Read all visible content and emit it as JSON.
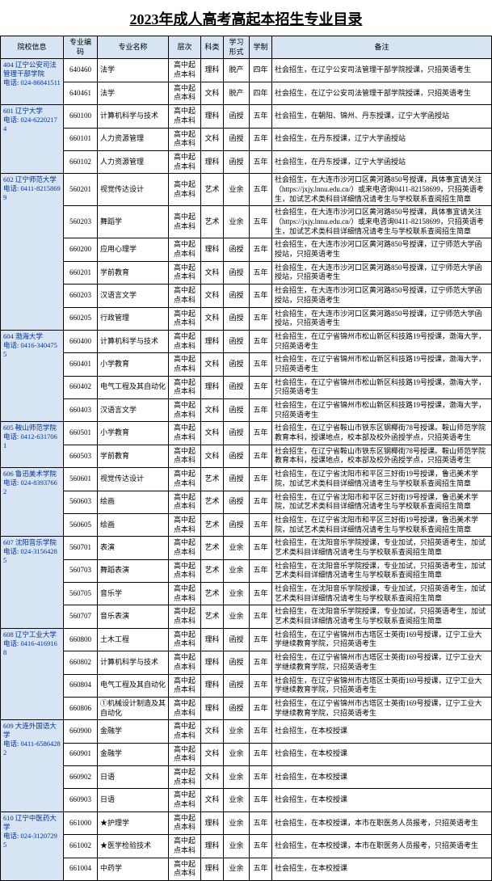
{
  "title": "2023年成人高考高起本招生专业目录",
  "headers": [
    "院校信息",
    "专业编码",
    "专业名称",
    "层次",
    "科类",
    "学习形式",
    "学制",
    "备注"
  ],
  "schools": [
    {
      "info": "404 辽宁公安司法管理干部学院\n电话: 024-86841511",
      "majors": [
        {
          "code": "640460",
          "name": "法学",
          "level": "高中起点本科",
          "cat": "理科",
          "form": "脱产",
          "year": "四年",
          "remark": "社会招生，在辽宁公安司法管理干部学院授课，只招英语考生"
        },
        {
          "code": "640461",
          "name": "法学",
          "level": "高中起点本科",
          "cat": "文科",
          "form": "脱产",
          "year": "四年",
          "remark": "社会招生，在辽宁公安司法管理干部学院授课，只招英语考生"
        }
      ]
    },
    {
      "info": "601 辽宁大学\n电话: 024-62202174",
      "majors": [
        {
          "code": "660100",
          "name": "计算机科学与技术",
          "level": "高中起点本科",
          "cat": "理科",
          "form": "函授",
          "year": "五年",
          "remark": "社会招生，在朝阳、锦州、丹东授课，辽宁大学函授站"
        },
        {
          "code": "660101",
          "name": "人力资源管理",
          "level": "高中起点本科",
          "cat": "文科",
          "form": "函授",
          "year": "五年",
          "remark": "社会招生，在丹东授课，辽宁大学函授站"
        },
        {
          "code": "660102",
          "name": "人力资源管理",
          "level": "高中起点本科",
          "cat": "理科",
          "form": "函授",
          "year": "五年",
          "remark": "社会招生，在丹东授课，辽宁大学函授站"
        }
      ]
    },
    {
      "info": "602 辽宁师范大学\n电话: 0411-82158699",
      "majors": [
        {
          "code": "560201",
          "name": "视觉传达设计",
          "level": "高中起点本科",
          "cat": "艺术",
          "form": "业余",
          "year": "五年",
          "remark": "社会招生，在大连市沙河口区黄河路850号授课，具体事宜请关注（https://jxjy.lnnu.edu.cn/）或来电咨询0411-82158699，只招英语考生，加试艺术类科目详细情况请考生与学校联系查阅招生简章"
        },
        {
          "code": "560203",
          "name": "舞蹈学",
          "level": "高中起点本科",
          "cat": "艺术",
          "form": "业余",
          "year": "五年",
          "remark": "社会招生，在大连市沙河口区黄河路850号授课，具体事宜请关注（https://jxjy.lnnu.edu.cn/）或来电咨询0411-82158699，只招英语考生，加试艺术类科目详细情况请考生与学校联系查阅招生简章"
        },
        {
          "code": "660200",
          "name": "应用心理学",
          "level": "高中起点本科",
          "cat": "理科",
          "form": "函授",
          "year": "五年",
          "remark": "社会招生，在大连市沙河口区黄河路850号授课，辽宁师范大学函授站，只招英语考生"
        },
        {
          "code": "660201",
          "name": "学前教育",
          "level": "高中起点本科",
          "cat": "文科",
          "form": "函授",
          "year": "五年",
          "remark": "社会招生，在大连市沙河口区黄河路850号授课，辽宁师范大学函授站，只招英语考生"
        },
        {
          "code": "660203",
          "name": "汉语言文学",
          "level": "高中起点本科",
          "cat": "文科",
          "form": "函授",
          "year": "五年",
          "remark": "社会招生，在大连市沙河口区黄河路850号授课，辽宁师范大学函授站，只招英语考生"
        },
        {
          "code": "660205",
          "name": "行政管理",
          "level": "高中起点本科",
          "cat": "文科",
          "form": "函授",
          "year": "五年",
          "remark": "社会招生，在大连市沙河口区黄河路850号授课，辽宁师范大学函授站，只招英语考生"
        }
      ]
    },
    {
      "info": "604 渤海大学\n电话: 0416-3404755",
      "majors": [
        {
          "code": "660400",
          "name": "计算机科学与技术",
          "level": "高中起点本科",
          "cat": "理科",
          "form": "函授",
          "year": "五年",
          "remark": "社会招生，在辽宁省锦州市松山新区科技路19号授课，渤海大学，只招英语考生"
        },
        {
          "code": "660401",
          "name": "小学教育",
          "level": "高中起点本科",
          "cat": "文科",
          "form": "函授",
          "year": "五年",
          "remark": "社会招生，在辽宁省锦州市松山新区科技路19号授课，渤海大学，只招英语考生"
        },
        {
          "code": "660402",
          "name": "电气工程及其自动化",
          "level": "高中起点本科",
          "cat": "理科",
          "form": "函授",
          "year": "五年",
          "remark": "社会招生，在辽宁省锦州市松山新区科技路19号授课，渤海大学，只招英语考生"
        },
        {
          "code": "660403",
          "name": "汉语言文学",
          "level": "高中起点本科",
          "cat": "文科",
          "form": "函授",
          "year": "五年",
          "remark": "社会招生，在辽宁省锦州市松山新区科技路19号授课，渤海大学，只招英语考生"
        }
      ]
    },
    {
      "info": "605 鞍山师范学院\n电话: 0412-6317061",
      "majors": [
        {
          "code": "660501",
          "name": "小学教育",
          "level": "高中起点本科",
          "cat": "文科",
          "form": "函授",
          "year": "五年",
          "remark": "社会招生，在辽宁省鞍山市铁东区钢椰街78号授课。鞍山师范学院教育本科，授课地点，校本部及校外函授学点，只招英语考生"
        },
        {
          "code": "660503",
          "name": "学前教育",
          "level": "高中起点本科",
          "cat": "文科",
          "form": "函授",
          "year": "五年",
          "remark": "社会招生，在辽宁省鞍山市铁东区钢椰街78号授课。鞍山师范学院教育本科，授课地点，校本部及校外函授学点，只招英语考生"
        }
      ]
    },
    {
      "info": "606 鲁迅美术学院\n电话: 024-83937662",
      "majors": [
        {
          "code": "560601",
          "name": "视觉传达设计",
          "level": "高中起点本科",
          "cat": "艺术",
          "form": "函授",
          "year": "五年",
          "remark": "社会招生，在辽宁省沈阳市和平区三好街19号授课，鲁迅美术学院，加试艺术类科目详细情况请考生与学校联系查阅招生简章"
        },
        {
          "code": "560603",
          "name": "绘画",
          "level": "高中起点本科",
          "cat": "艺术",
          "form": "函授",
          "year": "五年",
          "remark": "社会招生，在辽宁省沈阳市和平区三好街19号授课，鲁迅美术学院，加试艺术类科目详细情况请考生与学校联系查阅招生简章"
        },
        {
          "code": "560605",
          "name": "绘画",
          "level": "高中起点本科",
          "cat": "艺术",
          "form": "函授",
          "year": "五年",
          "remark": "社会招生，在辽宁省沈阳市和平区三好街19号授课，鲁迅美术学院，加试艺术类科目详细情况请考生与学校联系查阅招生简章"
        }
      ]
    },
    {
      "info": "607 沈阳音乐学院\n电话: 024-31564285",
      "majors": [
        {
          "code": "560701",
          "name": "表演",
          "level": "高中起点本科",
          "cat": "艺术",
          "form": "业余",
          "year": "五年",
          "remark": "社会招生，在沈阳音乐学院授课，专业加试，只招英语考生，加试艺术类科目详细情况请考生与学校联系查阅招生简章"
        },
        {
          "code": "560703",
          "name": "舞蹈表演",
          "level": "高中起点本科",
          "cat": "艺术",
          "form": "业余",
          "year": "五年",
          "remark": "社会招生，在沈阳音乐学院授课，专业加试，只招英语考生，加试艺术类科目详细情况请考生与学校联系查阅招生简章"
        },
        {
          "code": "560705",
          "name": "音乐学",
          "level": "高中起点本科",
          "cat": "艺术",
          "form": "业余",
          "year": "五年",
          "remark": "社会招生，在沈阳音乐学院授课，专业加试，只招英语考生，加试艺术类科目详细情况请考生与学校联系查阅招生简章"
        },
        {
          "code": "560707",
          "name": "音乐表演",
          "level": "高中起点本科",
          "cat": "艺术",
          "form": "业余",
          "year": "五年",
          "remark": "社会招生，在沈阳音乐学院授课，专业加试，只招英语考生，加试艺术类科目详细情况请考生与学校联系查阅招生简章"
        }
      ]
    },
    {
      "info": "608 辽宁工业大学\n电话: 0416-4169168",
      "majors": [
        {
          "code": "660800",
          "name": "土木工程",
          "level": "高中起点本科",
          "cat": "理科",
          "form": "函授",
          "year": "五年",
          "remark": "社会招生，在辽宁省锦州市古塔区士英街169号授课，辽宁工业大学继续教育学院，只招英语考生"
        },
        {
          "code": "660802",
          "name": "计算机科学与技术",
          "level": "高中起点本科",
          "cat": "理科",
          "form": "函授",
          "year": "五年",
          "remark": "社会招生，在辽宁省锦州市古塔区士英街169号授课，辽宁工业大学继续教育学院，只招英语考生"
        },
        {
          "code": "660804",
          "name": "电气工程及其自动化",
          "level": "高中起点本科",
          "cat": "理科",
          "form": "函授",
          "year": "五年",
          "remark": "社会招生，在辽宁省锦州市古塔区士英街169号授课，辽宁工业大学继续教育学院，只招英语考生"
        },
        {
          "code": "660806",
          "name": "①机械设计制造及其自动化",
          "level": "高中起点本科",
          "cat": "理科",
          "form": "函授",
          "year": "五年",
          "remark": "社会招生，在辽宁省锦州市古塔区士英街169号授课，辽宁工业大学继续教育学院，只招英语考生"
        }
      ]
    },
    {
      "info": "609 大连外国语大学\n电话: 0411-65864282",
      "majors": [
        {
          "code": "660900",
          "name": "金融学",
          "level": "高中起点本科",
          "cat": "文科",
          "form": "业余",
          "year": "五年",
          "remark": "社会招生，在本校授课"
        },
        {
          "code": "660901",
          "name": "金融学",
          "level": "高中起点本科",
          "cat": "文科",
          "form": "业余",
          "year": "五年",
          "remark": "社会招生，在本校授课"
        },
        {
          "code": "660902",
          "name": "日语",
          "level": "高中起点本科",
          "cat": "文科",
          "form": "业余",
          "year": "五年",
          "remark": "社会招生，在本校授课"
        },
        {
          "code": "660903",
          "name": "日语",
          "level": "高中起点本科",
          "cat": "文科",
          "form": "业余",
          "year": "五年",
          "remark": "社会招生，在本校授课"
        }
      ]
    },
    {
      "info": "610 辽宁中医药大学\n电话: 024-31207295",
      "majors": [
        {
          "code": "661000",
          "name": "★护理学",
          "level": "高中起点本科",
          "cat": "理科",
          "form": "业余",
          "year": "五年",
          "remark": "社会招生，在本校授课，本市在职医务人员报考，只招英语考生"
        },
        {
          "code": "661002",
          "name": "★医学检验技术",
          "level": "高中起点本科",
          "cat": "理科",
          "form": "业余",
          "year": "五年",
          "remark": "社会招生，在本校授课，本市在职医务人员报考，只招英语考生"
        },
        {
          "code": "661004",
          "name": "中药学",
          "level": "高中起点本科",
          "cat": "理科",
          "form": "业余",
          "year": "五年",
          "remark": "社会招生，在本校授课"
        }
      ]
    }
  ]
}
